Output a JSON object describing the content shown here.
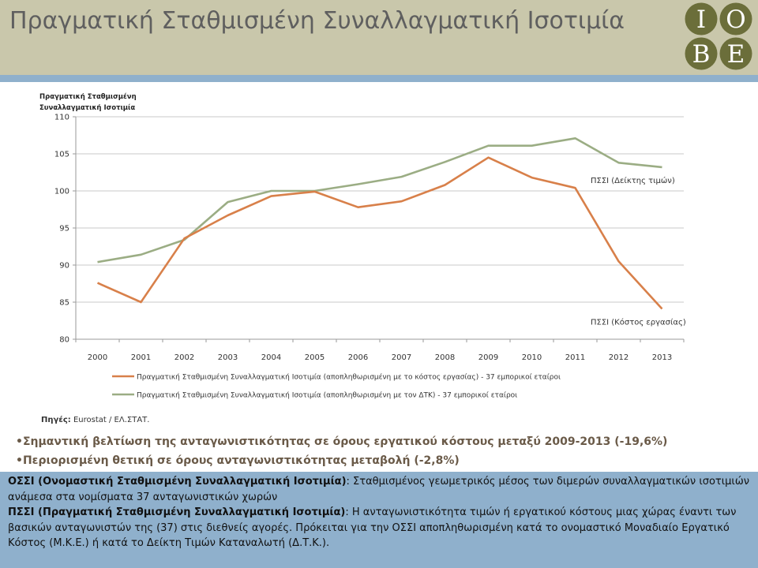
{
  "header": {
    "title": "Πραγματική Σταθμισμένη Συναλλαγματική Ισοτιμία",
    "logo_letters": [
      "I",
      "O",
      "B",
      "E"
    ],
    "logo_color": "#6b6e3a"
  },
  "colors": {
    "header_bg": "#c9c7ab",
    "accent_blue": "#8fb0cc",
    "bullet_text": "#6a5a48"
  },
  "chart_data": {
    "type": "line",
    "ylabel": "Πραγματική Σταθμισμένη Συναλλαγματική Ισοτιμία",
    "x": [
      "2000",
      "2001",
      "2002",
      "2003",
      "2004",
      "2005",
      "2006",
      "2007",
      "2008",
      "2009",
      "2010",
      "2011",
      "2012",
      "2013"
    ],
    "yticks": [
      80,
      85,
      90,
      95,
      100,
      105,
      110
    ],
    "ylim": [
      80,
      110
    ],
    "grid": true,
    "legend_position": "bottom",
    "series": [
      {
        "name": "Πραγματική Σταθμισμένη Συναλλαγματική Ισοτιμία (αποπληθωρισμένη με το κόστος εργασίας) - 37 εμπορικοί εταίροι",
        "color": "#d8804a",
        "label": "ΠΣΣΙ (Κόστος εργασίας)",
        "values": [
          87.6,
          85.0,
          93.6,
          96.7,
          99.3,
          99.9,
          97.8,
          98.6,
          100.8,
          104.5,
          101.8,
          100.4,
          90.5,
          84.1
        ]
      },
      {
        "name": "Πραγματική Σταθμισμένη Συναλλαγματική Ισοτιμία (αποπληθωρισμένη με τον ΔΤΚ) - 37 εμπορικοί εταίροι",
        "color": "#9bad84",
        "label": "ΠΣΣΙ (Δείκτης τιμών)",
        "values": [
          90.4,
          91.4,
          93.4,
          98.5,
          100.0,
          100.0,
          100.9,
          101.9,
          103.9,
          106.1,
          106.1,
          107.1,
          103.8,
          103.2
        ]
      }
    ]
  },
  "source": {
    "label": "Πηγές:",
    "text": "Eurostat / ΕΛ.ΣΤΑΤ."
  },
  "bullets": [
    "Σημαντική βελτίωση της ανταγωνιστικότητας σε όρους εργατικού κόστους μεταξύ 2009-2013 (-19,6%)",
    "Περιορισμένη θετική σε όρους ανταγωνιστικότητας μεταβολή (-2,8%)"
  ],
  "info": {
    "ossi_term": "ΟΣΣΙ (Ονομαστική Σταθμισμένη Συναλλαγματική Ισοτιμία)",
    "ossi_text": ": Σταθμισμένος γεωμετρικός μέσος των διμερών συναλλαγματικών ισοτιμιών ανάμεσα στα νομίσματα 37 ανταγωνιστικών χωρών",
    "pssi_term": "ΠΣΣΙ (Πραγματική Σταθμισμένη Συναλλαγματική Ισοτιμία)",
    "pssi_text": ": Η ανταγωνιστικότητα τιμών ή εργατικού κόστους μιας χώρας έναντι των βασικών ανταγωνιστών της (37) στις διεθνείς αγορές. Πρόκειται για την ΟΣΣΙ αποπληθωρισμένη κατά το ονομαστικό Μοναδιαίο Εργατικό Κόστος (Μ.Κ.Ε.) ή κατά το Δείκτη Τιμών Καταναλωτή (Δ.Τ.Κ.)."
  }
}
